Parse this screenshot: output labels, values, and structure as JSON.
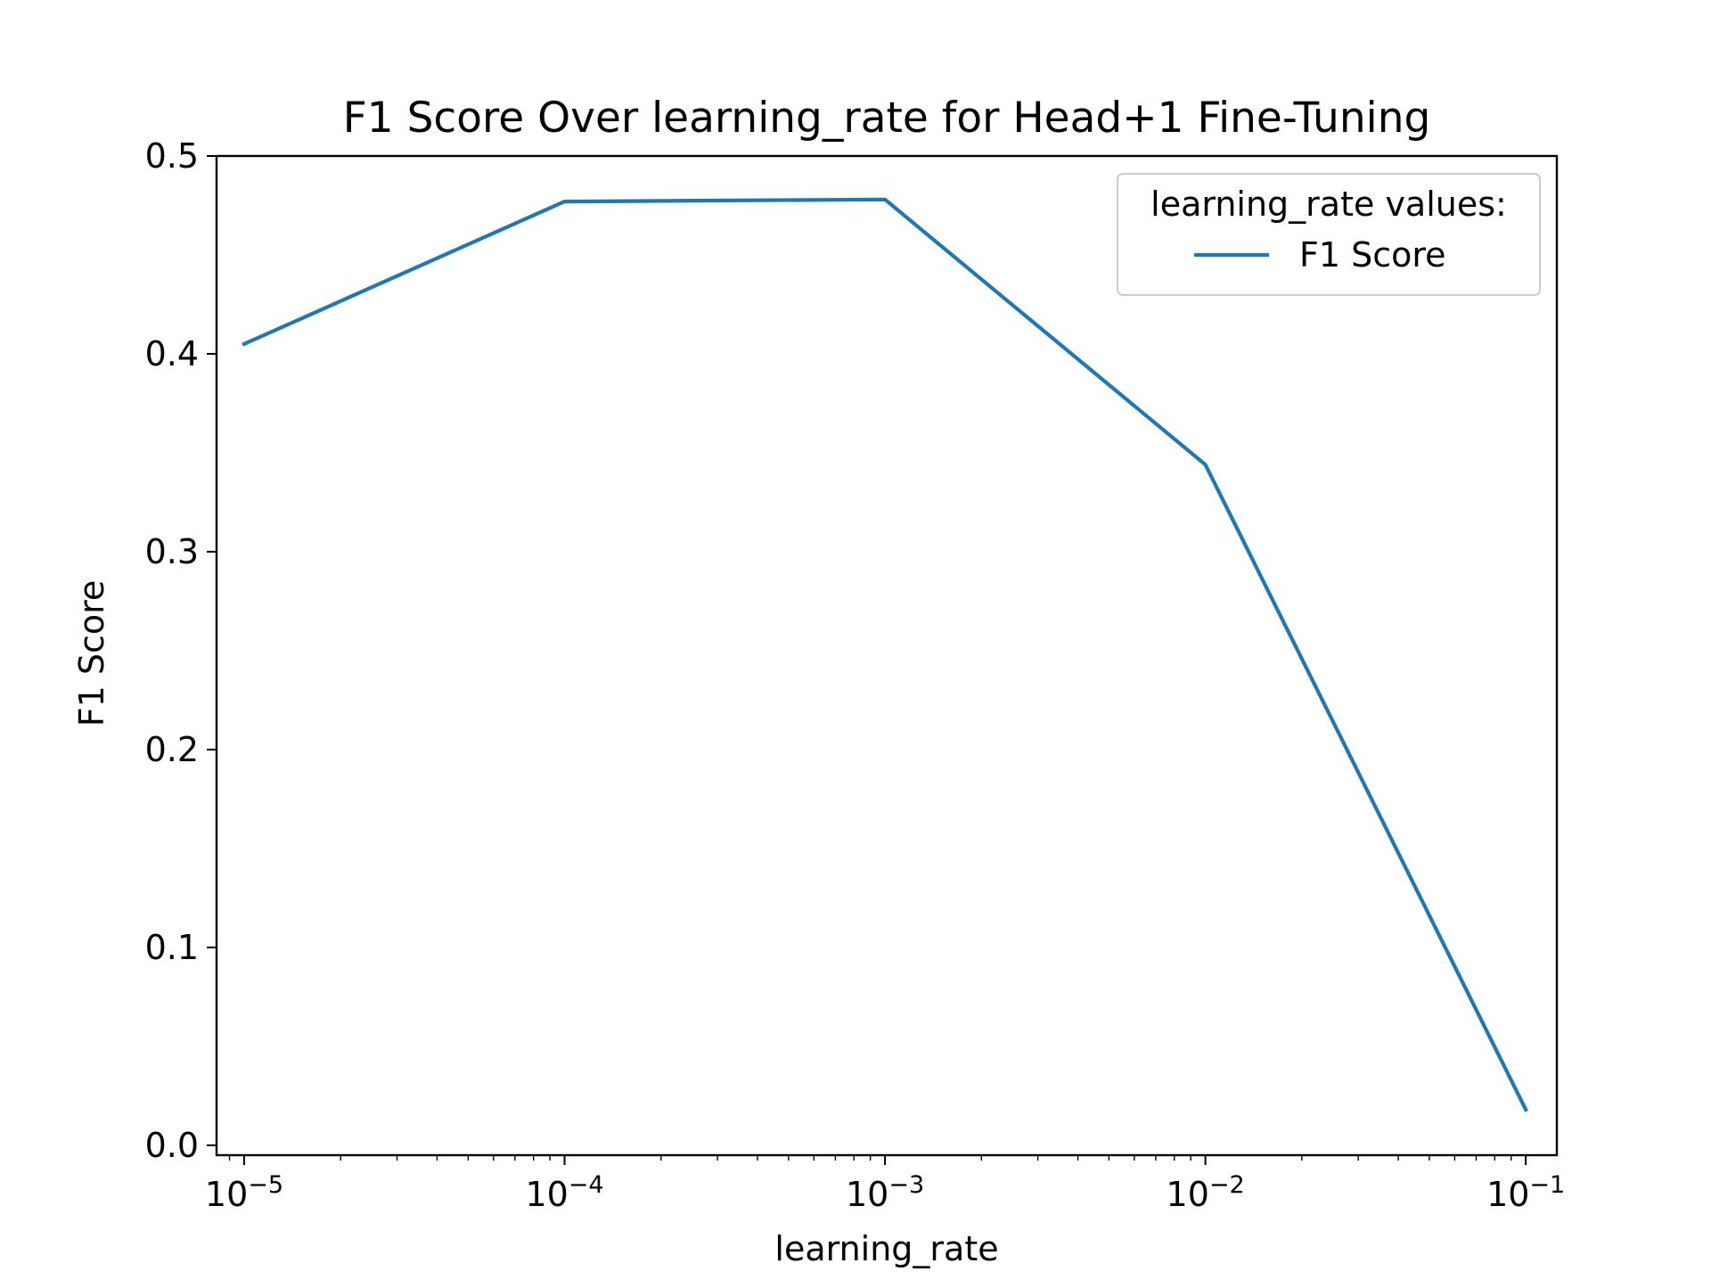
{
  "chart_data": {
    "type": "line",
    "title": "F1 Score Over learning_rate for Head+1 Fine-Tuning",
    "xlabel": "learning_rate",
    "ylabel": "F1 Score",
    "xscale": "log",
    "xlim": [
      8.2e-06,
      0.125
    ],
    "ylim": [
      -0.005,
      0.5
    ],
    "xticks": [
      {
        "value": 1e-05,
        "base": "10",
        "exp": "−5"
      },
      {
        "value": 0.0001,
        "base": "10",
        "exp": "−4"
      },
      {
        "value": 0.001,
        "base": "10",
        "exp": "−3"
      },
      {
        "value": 0.01,
        "base": "10",
        "exp": "−2"
      },
      {
        "value": 0.1,
        "base": "10",
        "exp": "−1"
      }
    ],
    "yticks": [
      {
        "value": 0.0,
        "label": "0.0"
      },
      {
        "value": 0.1,
        "label": "0.1"
      },
      {
        "value": 0.2,
        "label": "0.2"
      },
      {
        "value": 0.3,
        "label": "0.3"
      },
      {
        "value": 0.4,
        "label": "0.4"
      },
      {
        "value": 0.5,
        "label": "0.5"
      }
    ],
    "grid": false,
    "legend": {
      "title": "learning_rate values:",
      "position": "top-right"
    },
    "series": [
      {
        "name": "F1 Score",
        "color": "#1f77b4",
        "x": [
          1e-05,
          0.0001,
          0.001,
          0.01,
          0.1
        ],
        "y": [
          0.405,
          0.477,
          0.478,
          0.344,
          0.018
        ]
      }
    ]
  }
}
